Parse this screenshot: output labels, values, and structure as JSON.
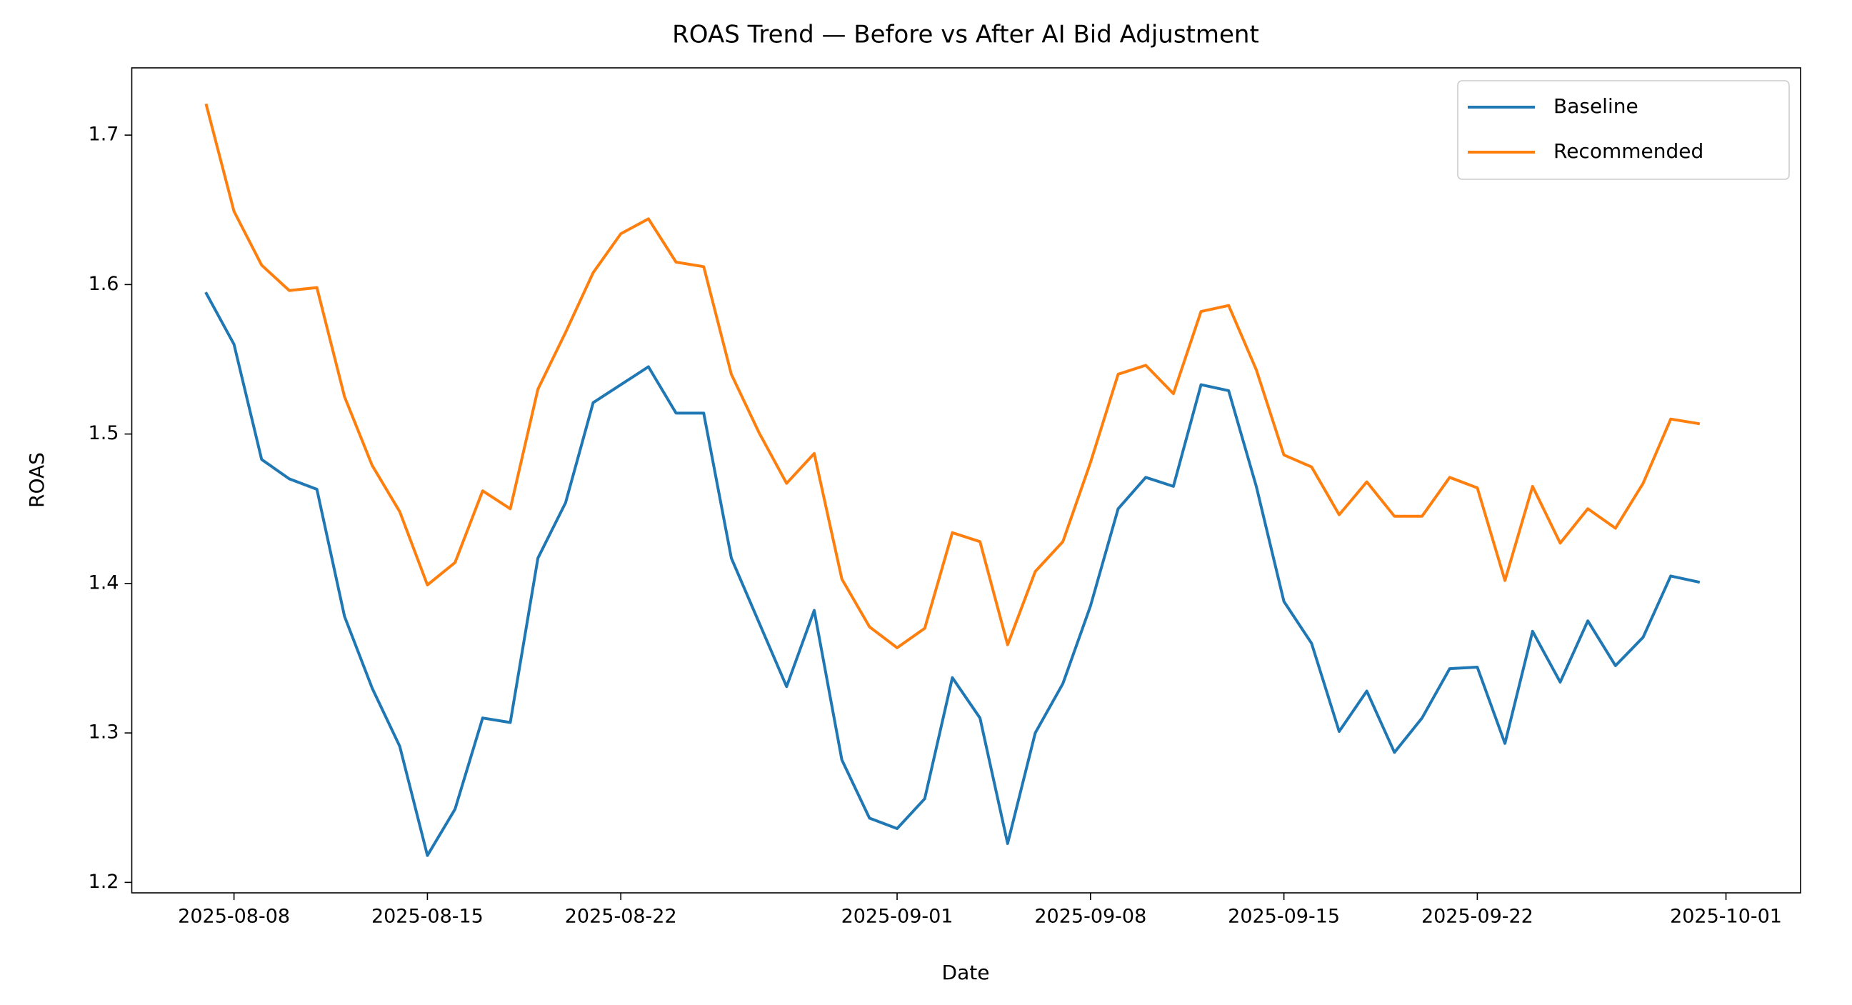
{
  "chart_data": {
    "type": "line",
    "title": "ROAS Trend — Before vs After AI Bid Adjustment",
    "xlabel": "Date",
    "ylabel": "ROAS",
    "x": [
      "2025-08-07",
      "2025-08-08",
      "2025-08-09",
      "2025-08-10",
      "2025-08-11",
      "2025-08-12",
      "2025-08-13",
      "2025-08-14",
      "2025-08-15",
      "2025-08-16",
      "2025-08-17",
      "2025-08-18",
      "2025-08-19",
      "2025-08-20",
      "2025-08-21",
      "2025-08-22",
      "2025-08-23",
      "2025-08-24",
      "2025-08-25",
      "2025-08-26",
      "2025-08-27",
      "2025-08-28",
      "2025-08-29",
      "2025-08-30",
      "2025-08-31",
      "2025-09-01",
      "2025-09-02",
      "2025-09-03",
      "2025-09-04",
      "2025-09-05",
      "2025-09-06",
      "2025-09-07",
      "2025-09-08",
      "2025-09-09",
      "2025-09-10",
      "2025-09-11",
      "2025-09-12",
      "2025-09-13",
      "2025-09-14",
      "2025-09-15",
      "2025-09-16",
      "2025-09-17",
      "2025-09-18",
      "2025-09-19",
      "2025-09-20",
      "2025-09-21",
      "2025-09-22",
      "2025-09-23",
      "2025-09-24",
      "2025-09-25",
      "2025-09-26",
      "2025-09-27",
      "2025-09-28",
      "2025-09-29",
      "2025-09-30"
    ],
    "series": [
      {
        "name": "Baseline",
        "color": "#1f77b4",
        "values": [
          1.594,
          1.56,
          1.483,
          1.47,
          1.463,
          1.378,
          1.33,
          1.291,
          1.218,
          1.249,
          1.31,
          1.307,
          1.417,
          1.454,
          1.521,
          1.533,
          1.545,
          1.514,
          1.514,
          1.417,
          1.374,
          1.331,
          1.382,
          1.282,
          1.243,
          1.236,
          1.256,
          1.337,
          1.31,
          1.226,
          1.3,
          1.333,
          1.385,
          1.45,
          1.471,
          1.465,
          1.533,
          1.529,
          1.465,
          1.388,
          1.36,
          1.301,
          1.328,
          1.287,
          1.31,
          1.343,
          1.344,
          1.293,
          1.368,
          1.334,
          1.375,
          1.345,
          1.364,
          1.405,
          1.401
        ]
      },
      {
        "name": "Recommended",
        "color": "#ff7f0e",
        "values": [
          1.72,
          1.649,
          1.613,
          1.596,
          1.598,
          1.525,
          1.479,
          1.448,
          1.399,
          1.414,
          1.462,
          1.45,
          1.53,
          1.568,
          1.608,
          1.634,
          1.644,
          1.615,
          1.612,
          1.54,
          1.501,
          1.467,
          1.487,
          1.403,
          1.371,
          1.357,
          1.37,
          1.434,
          1.428,
          1.359,
          1.408,
          1.428,
          1.481,
          1.54,
          1.546,
          1.527,
          1.582,
          1.586,
          1.543,
          1.486,
          1.478,
          1.446,
          1.468,
          1.445,
          1.445,
          1.471,
          1.464,
          1.402,
          1.465,
          1.427,
          1.45,
          1.437,
          1.467,
          1.51,
          1.507
        ]
      }
    ],
    "xlim": [
      "2025-08-04T07:12Z",
      "2025-10-03T16:48Z"
    ],
    "xticks": [
      "2025-08-08",
      "2025-08-15",
      "2025-08-22",
      "2025-09-01",
      "2025-09-08",
      "2025-09-15",
      "2025-09-22",
      "2025-10-01"
    ],
    "ylim": [
      1.193,
      1.745
    ],
    "yticks": [
      1.2,
      1.3,
      1.4,
      1.5,
      1.6,
      1.7
    ],
    "grid": false,
    "legend": "upper right"
  }
}
